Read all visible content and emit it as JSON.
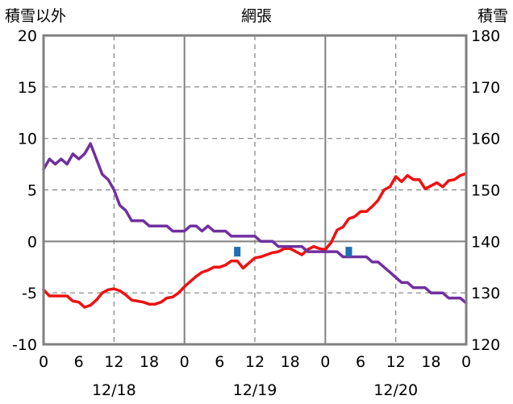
{
  "chart_data": {
    "type": "line",
    "title": "網張",
    "left_axis": {
      "label": "積雪以外",
      "ylim": [
        -10,
        20
      ],
      "ticks": [
        "20",
        "15",
        "10",
        "5",
        "0",
        "-5",
        "-10"
      ]
    },
    "right_axis": {
      "label": "積雪",
      "ylim": [
        120,
        180
      ],
      "ticks": [
        "180",
        "170",
        "160",
        "150",
        "140",
        "130",
        "120"
      ]
    },
    "x_tick_labels": [
      "0",
      "6",
      "12",
      "18",
      "0",
      "6",
      "12",
      "18",
      "0",
      "6",
      "12",
      "18",
      "0"
    ],
    "date_labels": [
      "12/18",
      "12/19",
      "12/20"
    ],
    "grid": true,
    "colors": {
      "temperature": "#ee1111",
      "snow": "#7030a0",
      "marker": "#1f6fb4",
      "grid": "#808080"
    },
    "series": [
      {
        "axis": "left",
        "color": "#ee1111",
        "x": [
          0,
          1,
          2,
          3,
          4,
          5,
          6,
          7,
          8,
          9,
          10,
          11,
          12,
          13,
          14,
          15,
          16,
          17,
          18,
          19,
          20,
          21,
          22,
          23,
          24,
          25,
          26,
          27,
          28,
          29,
          30,
          31,
          32,
          33,
          34,
          35,
          36,
          37,
          38,
          39,
          40,
          41,
          42,
          43,
          44,
          45,
          46,
          47,
          48,
          49,
          50,
          51,
          52,
          53,
          54,
          55,
          56,
          57,
          58,
          59,
          60,
          61,
          62,
          63,
          64,
          65,
          66,
          67,
          68,
          69,
          70,
          71,
          72
        ],
        "values": [
          -4.7,
          -5.3,
          -5.3,
          -5.3,
          -5.3,
          -5.8,
          -5.9,
          -6.4,
          -6.2,
          -5.7,
          -5.0,
          -4.7,
          -4.6,
          -4.8,
          -5.2,
          -5.7,
          -5.8,
          -5.9,
          -6.1,
          -6.1,
          -5.9,
          -5.5,
          -5.4,
          -5.0,
          -4.4,
          -3.9,
          -3.4,
          -3.0,
          -2.8,
          -2.5,
          -2.5,
          -2.3,
          -1.9,
          -1.9,
          -2.6,
          -2.1,
          -1.6,
          -1.5,
          -1.3,
          -1.1,
          -1.0,
          -0.7,
          -0.7,
          -1.0,
          -1.3,
          -0.8,
          -0.5,
          -0.7,
          -0.8,
          -0.1,
          1.1,
          1.4,
          2.2,
          2.4,
          2.9,
          2.9,
          3.4,
          4.0,
          5.0,
          5.3,
          6.3,
          5.8,
          6.4,
          6.0,
          6.0,
          5.1,
          5.4,
          5.7,
          5.3,
          5.9,
          6.0,
          6.4,
          6.6
        ]
      },
      {
        "axis": "right",
        "color": "#7030a0",
        "x": [
          0,
          1,
          2,
          3,
          4,
          5,
          6,
          7,
          8,
          9,
          10,
          11,
          12,
          13,
          14,
          15,
          16,
          17,
          18,
          19,
          20,
          21,
          22,
          23,
          24,
          25,
          26,
          27,
          28,
          29,
          30,
          31,
          32,
          33,
          34,
          35,
          36,
          37,
          38,
          39,
          40,
          41,
          42,
          43,
          44,
          45,
          46,
          47,
          48,
          49,
          50,
          51,
          52,
          53,
          54,
          55,
          56,
          57,
          58,
          59,
          60,
          61,
          62,
          63,
          64,
          65,
          66,
          67,
          68,
          69,
          70,
          71,
          72
        ],
        "values": [
          154,
          156,
          155,
          156,
          155,
          157,
          156,
          157,
          159,
          156,
          153,
          152,
          150,
          147,
          146,
          144,
          144,
          144,
          143,
          143,
          143,
          143,
          142,
          142,
          142,
          143,
          143,
          142,
          143,
          142,
          142,
          142,
          141,
          141,
          141,
          141,
          141,
          140,
          140,
          140,
          139,
          139,
          139,
          139,
          139,
          138,
          138,
          138,
          138,
          138,
          138,
          137,
          137,
          137,
          137,
          137,
          136,
          136,
          135,
          134,
          133,
          132,
          132,
          131,
          131,
          131,
          130,
          130,
          130,
          129,
          129,
          129,
          128
        ]
      }
    ],
    "markers": [
      {
        "x": 33,
        "value": -1.0,
        "axis": "left",
        "color": "#1f6fb4"
      },
      {
        "x": 52,
        "value": -1.0,
        "axis": "left",
        "color": "#1f6fb4"
      }
    ]
  }
}
